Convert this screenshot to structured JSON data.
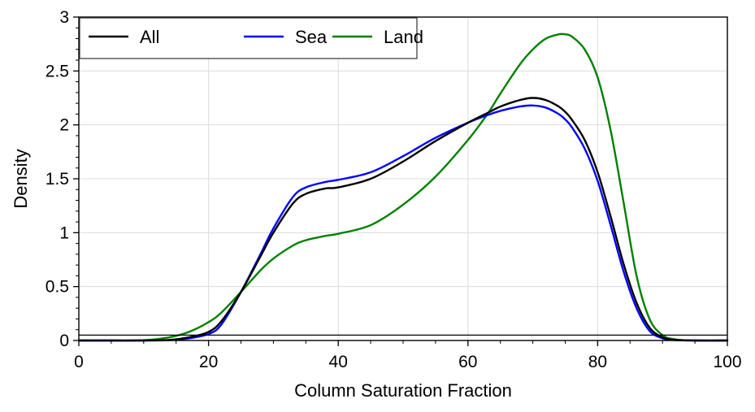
{
  "chart_data": {
    "type": "line",
    "xlabel": "Column Saturation Fraction",
    "ylabel": "Density",
    "xlim": [
      0,
      100
    ],
    "ylim": [
      0,
      3
    ],
    "x_ticks": [
      0,
      20,
      40,
      60,
      80,
      100
    ],
    "x_tick_labels": [
      "0",
      "20",
      "40",
      "60",
      "80",
      "100"
    ],
    "y_ticks": [
      0,
      0.5,
      1,
      1.5,
      2,
      2.5,
      3
    ],
    "y_tick_labels": [
      "0",
      "0.5",
      "1",
      "1.5",
      "2",
      "2.5",
      "3"
    ],
    "grid": true,
    "legend_position": "top-left",
    "reference_line_y": 0.05,
    "x": [
      0,
      5,
      10,
      14,
      17,
      20,
      22,
      25,
      28,
      30,
      33,
      35,
      38,
      40,
      45,
      50,
      55,
      60,
      63,
      65,
      68,
      70,
      72,
      74,
      75,
      76,
      78,
      80,
      82,
      84,
      86,
      88,
      90,
      92,
      95,
      100
    ],
    "series": [
      {
        "name": "All",
        "color": "#000000",
        "values": [
          0,
          0,
          0,
          0.005,
          0.03,
          0.08,
          0.18,
          0.45,
          0.78,
          1.0,
          1.27,
          1.36,
          1.41,
          1.42,
          1.5,
          1.66,
          1.85,
          2.02,
          2.11,
          2.17,
          2.23,
          2.25,
          2.23,
          2.17,
          2.12,
          2.05,
          1.86,
          1.56,
          1.15,
          0.71,
          0.35,
          0.12,
          0.03,
          0.005,
          0,
          0
        ]
      },
      {
        "name": "Sea",
        "color": "#0000ff",
        "values": [
          0,
          0,
          0,
          0.003,
          0.02,
          0.06,
          0.15,
          0.45,
          0.8,
          1.04,
          1.33,
          1.42,
          1.47,
          1.49,
          1.56,
          1.71,
          1.88,
          2.02,
          2.09,
          2.13,
          2.17,
          2.18,
          2.16,
          2.1,
          2.05,
          1.98,
          1.78,
          1.48,
          1.07,
          0.64,
          0.3,
          0.09,
          0.02,
          0.003,
          0,
          0
        ]
      },
      {
        "name": "Land",
        "color": "#008000",
        "values": [
          0,
          0,
          0.003,
          0.03,
          0.08,
          0.17,
          0.26,
          0.45,
          0.65,
          0.76,
          0.88,
          0.93,
          0.97,
          0.99,
          1.07,
          1.26,
          1.52,
          1.86,
          2.1,
          2.29,
          2.56,
          2.7,
          2.8,
          2.84,
          2.84,
          2.82,
          2.7,
          2.44,
          1.95,
          1.28,
          0.6,
          0.2,
          0.05,
          0.01,
          0,
          0
        ]
      }
    ]
  }
}
